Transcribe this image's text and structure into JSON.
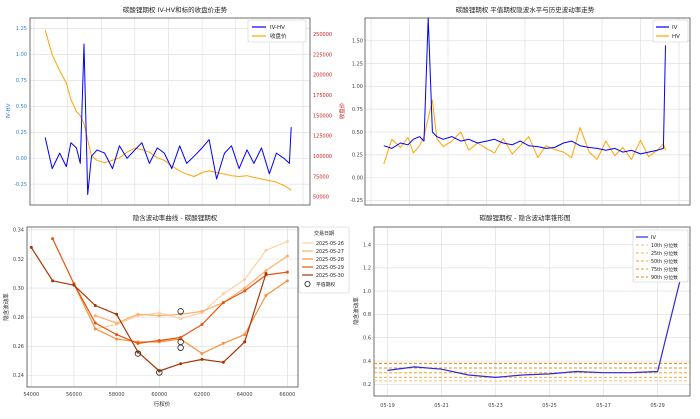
{
  "chart_data": [
    {
      "type": "line",
      "title": "碳酸锂期权 IV-HV和标的收盘价走势",
      "ylabel": "IV-HV",
      "y2label": "收盘价",
      "x_ticks": [
        "2023-07",
        "2023-10",
        "2024-01",
        "2024-04",
        "2024-07",
        "2024-10",
        "2025-01",
        "2025-04",
        "2025-07"
      ],
      "ylim": [
        -0.45,
        1.35
      ],
      "y_ticks": [
        "-0.50",
        "-0.25",
        "0.00",
        "0.25",
        "0.50",
        "0.75",
        "1.00",
        "1.25"
      ],
      "y2lim": [
        40000,
        270000
      ],
      "y2_ticks": [
        "50000",
        "75000",
        "100000",
        "125000",
        "150000",
        "175000",
        "200000",
        "225000",
        "250000"
      ],
      "grid": true,
      "legend_position": "upper-right",
      "series": [
        {
          "name": "IV-HV",
          "color": "#0000ff",
          "axis": "left",
          "x": [
            "2023-08-01",
            "2023-08-20",
            "2023-09-10",
            "2023-09-28",
            "2023-10-10",
            "2023-10-25",
            "2023-11-05",
            "2023-11-15",
            "2023-11-25",
            "2023-12-05",
            "2023-12-20",
            "2024-01-10",
            "2024-02-01",
            "2024-02-20",
            "2024-03-10",
            "2024-04-01",
            "2024-04-20",
            "2024-05-10",
            "2024-06-01",
            "2024-06-20",
            "2024-07-10",
            "2024-08-01",
            "2024-08-20",
            "2024-09-10",
            "2024-10-01",
            "2024-10-20",
            "2024-11-10",
            "2024-12-01",
            "2024-12-20",
            "2025-01-10",
            "2025-02-01",
            "2025-02-20",
            "2025-03-10",
            "2025-04-01",
            "2025-04-20",
            "2025-05-10",
            "2025-05-25",
            "2025-05-30"
          ],
          "y": [
            0.2,
            -0.1,
            0.05,
            -0.08,
            0.15,
            0.1,
            -0.05,
            1.1,
            -0.35,
            0.02,
            0.08,
            0.05,
            -0.1,
            0.12,
            0.0,
            0.08,
            0.15,
            -0.05,
            0.1,
            0.05,
            -0.1,
            0.12,
            -0.05,
            0.02,
            0.1,
            0.18,
            -0.2,
            0.05,
            0.12,
            -0.1,
            0.08,
            -0.05,
            0.1,
            -0.15,
            0.05,
            0.0,
            -0.05,
            0.3
          ]
        },
        {
          "name": "收盘价",
          "color": "#ffa500",
          "axis": "right",
          "x": [
            "2023-08-01",
            "2023-08-20",
            "2023-09-10",
            "2023-09-28",
            "2023-10-10",
            "2023-10-25",
            "2023-11-05",
            "2023-11-15",
            "2023-11-25",
            "2023-12-05",
            "2023-12-20",
            "2024-01-10",
            "2024-02-01",
            "2024-02-20",
            "2024-03-10",
            "2024-04-01",
            "2024-04-20",
            "2024-05-10",
            "2024-06-01",
            "2024-06-20",
            "2024-07-10",
            "2024-08-01",
            "2024-08-20",
            "2024-09-10",
            "2024-10-01",
            "2024-10-20",
            "2024-11-10",
            "2024-12-01",
            "2024-12-20",
            "2025-01-10",
            "2025-02-01",
            "2025-02-20",
            "2025-03-10",
            "2025-04-01",
            "2025-04-20",
            "2025-05-10",
            "2025-05-25",
            "2025-05-30"
          ],
          "y": [
            255000,
            225000,
            205000,
            190000,
            170000,
            155000,
            150000,
            140000,
            120000,
            100000,
            95000,
            92000,
            95000,
            98000,
            105000,
            110000,
            108000,
            105000,
            98000,
            95000,
            88000,
            82000,
            78000,
            75000,
            80000,
            82000,
            80000,
            78000,
            76000,
            75000,
            76000,
            74000,
            72000,
            70000,
            68000,
            64000,
            60000,
            58000
          ]
        }
      ]
    },
    {
      "type": "line",
      "title": "碳酸锂期权 平值期权隐波水平与历史波动率走势",
      "x_ticks": [
        "2023-07",
        "2023-10",
        "2024-01",
        "2024-04",
        "2024-07",
        "2024-10",
        "2025-01",
        "2025-04",
        "2025-07"
      ],
      "ylim": [
        -0.3,
        1.75
      ],
      "y_ticks": [
        "-0.25",
        "0.00",
        "0.25",
        "0.50",
        "0.75",
        "1.00",
        "1.25",
        "1.50"
      ],
      "grid": true,
      "legend_position": "upper-right",
      "series": [
        {
          "name": "IV",
          "color": "#0000ff",
          "x": [
            "2023-08-01",
            "2023-08-20",
            "2023-09-10",
            "2023-09-28",
            "2023-10-10",
            "2023-10-25",
            "2023-11-05",
            "2023-11-15",
            "2023-11-25",
            "2023-12-05",
            "2023-12-20",
            "2024-01-10",
            "2024-02-01",
            "2024-02-20",
            "2024-03-10",
            "2024-04-01",
            "2024-04-20",
            "2024-05-10",
            "2024-06-01",
            "2024-06-20",
            "2024-07-10",
            "2024-08-01",
            "2024-08-20",
            "2024-09-10",
            "2024-10-01",
            "2024-10-20",
            "2024-11-10",
            "2024-12-01",
            "2024-12-20",
            "2025-01-10",
            "2025-02-01",
            "2025-02-20",
            "2025-03-10",
            "2025-04-01",
            "2025-04-20",
            "2025-05-10",
            "2025-05-25",
            "2025-05-30"
          ],
          "y": [
            0.35,
            0.32,
            0.38,
            0.36,
            0.42,
            0.45,
            0.4,
            1.75,
            0.5,
            0.45,
            0.42,
            0.45,
            0.4,
            0.42,
            0.38,
            0.4,
            0.42,
            0.38,
            0.36,
            0.4,
            0.35,
            0.34,
            0.32,
            0.33,
            0.38,
            0.4,
            0.35,
            0.33,
            0.32,
            0.3,
            0.32,
            0.28,
            0.3,
            0.26,
            0.28,
            0.3,
            0.32,
            1.45
          ]
        },
        {
          "name": "HV",
          "color": "#ffa500",
          "x": [
            "2023-08-01",
            "2023-08-20",
            "2023-09-10",
            "2023-09-28",
            "2023-10-10",
            "2023-10-25",
            "2023-11-05",
            "2023-11-15",
            "2023-11-25",
            "2023-12-05",
            "2023-12-20",
            "2024-01-10",
            "2024-02-01",
            "2024-02-20",
            "2024-03-10",
            "2024-04-01",
            "2024-04-20",
            "2024-05-10",
            "2024-06-01",
            "2024-06-20",
            "2024-07-10",
            "2024-08-01",
            "2024-08-20",
            "2024-09-10",
            "2024-10-01",
            "2024-10-20",
            "2024-11-10",
            "2024-12-01",
            "2024-12-20",
            "2025-01-10",
            "2025-02-01",
            "2025-02-20",
            "2025-03-10",
            "2025-04-01",
            "2025-04-20",
            "2025-05-10",
            "2025-05-25",
            "2025-05-30"
          ],
          "y": [
            0.15,
            0.42,
            0.33,
            0.44,
            0.27,
            0.35,
            0.45,
            0.65,
            0.85,
            0.43,
            0.34,
            0.4,
            0.5,
            0.3,
            0.38,
            0.32,
            0.27,
            0.43,
            0.26,
            0.35,
            0.45,
            0.22,
            0.35,
            0.31,
            0.28,
            0.22,
            0.55,
            0.28,
            0.2,
            0.4,
            0.24,
            0.33,
            0.2,
            0.41,
            0.23,
            0.3,
            0.37,
            0.3
          ]
        }
      ]
    },
    {
      "type": "line",
      "title": "隐含波动率曲线 - 碳酸锂期权",
      "xlabel": "行权价",
      "ylabel": "隐含波动率",
      "xlim": [
        53800,
        66500
      ],
      "x_ticks": [
        "54000",
        "56000",
        "58000",
        "60000",
        "62000",
        "64000",
        "66000"
      ],
      "ylim": [
        0.232,
        0.342
      ],
      "y_ticks": [
        "0.24",
        "0.26",
        "0.28",
        "0.30",
        "0.32",
        "0.34"
      ],
      "grid": true,
      "legend_title": "交易日期",
      "legend_position": "upper-right",
      "series": [
        {
          "name": "2025-05-26",
          "color": "#fdd0a2",
          "x": [
            57000,
            58000,
            59000,
            60000,
            61000,
            62000,
            63000,
            64000,
            65000,
            66000
          ],
          "y": [
            0.272,
            0.275,
            0.281,
            0.283,
            0.279,
            0.283,
            0.296,
            0.306,
            0.326,
            0.332
          ]
        },
        {
          "name": "2025-05-27",
          "color": "#fdae6b",
          "x": [
            57000,
            58000,
            59000,
            60000,
            61000,
            62000,
            63000,
            64000,
            65000,
            66000
          ],
          "y": [
            0.281,
            0.276,
            0.282,
            0.281,
            0.282,
            0.284,
            0.29,
            0.3,
            0.312,
            0.322
          ]
        },
        {
          "name": "2025-05-28",
          "color": "#fd8d3c",
          "x": [
            56000,
            57000,
            58000,
            59000,
            60000,
            61000,
            62000,
            63000,
            64000,
            65000,
            66000
          ],
          "y": [
            0.303,
            0.272,
            0.265,
            0.263,
            0.263,
            0.265,
            0.255,
            0.262,
            0.268,
            0.295,
            0.305
          ]
        },
        {
          "name": "2025-05-29",
          "color": "#e6550d",
          "x": [
            55000,
            56000,
            57000,
            58000,
            59000,
            60000,
            61000,
            62000,
            63000,
            64000,
            65000,
            66000
          ],
          "y": [
            0.334,
            0.303,
            0.276,
            0.268,
            0.262,
            0.264,
            0.266,
            0.275,
            0.29,
            0.298,
            0.309,
            0.311
          ]
        },
        {
          "name": "2025-05-30",
          "color": "#a63603",
          "x": [
            54000,
            55000,
            56000,
            57000,
            58000,
            59000,
            60000,
            61000,
            62000,
            63000,
            64000,
            65000
          ],
          "y": [
            0.328,
            0.305,
            0.302,
            0.288,
            0.282,
            0.256,
            0.243,
            0.248,
            0.251,
            0.249,
            0.263,
            0.31
          ]
        }
      ],
      "atm_points": [
        {
          "x": 61000,
          "y": 0.284
        },
        {
          "x": 61000,
          "y": 0.263
        },
        {
          "x": 61000,
          "y": 0.259
        },
        {
          "x": 59000,
          "y": 0.255
        },
        {
          "x": 60000,
          "y": 0.242
        }
      ],
      "atm_label": "平值期权"
    },
    {
      "type": "line",
      "title": "碳酸锂期权 - 隐含波动率锥形图",
      "ylabel": "隐含波动率",
      "x_ticks": [
        "05-19",
        "05-21",
        "05-23",
        "05-25",
        "05-27",
        "05-29"
      ],
      "ylim": [
        0.1,
        1.55
      ],
      "y_ticks": [
        "0.2",
        "0.4",
        "0.6",
        "0.8",
        "1.0",
        "1.2",
        "1.4"
      ],
      "grid": true,
      "legend_position": "upper-right",
      "series": [
        {
          "name": "IV",
          "color": "#2a2adf",
          "x": [
            19,
            20,
            21,
            22,
            23,
            24,
            25,
            26,
            27,
            28,
            29,
            30
          ],
          "y": [
            0.32,
            0.35,
            0.33,
            0.28,
            0.26,
            0.28,
            0.29,
            0.31,
            0.3,
            0.3,
            0.31,
            1.25
          ]
        }
      ],
      "percentiles": [
        {
          "name": "10th 分位数",
          "value": 0.23,
          "color": "#f6c17a"
        },
        {
          "name": "25th 分位数",
          "value": 0.26,
          "color": "#f4b04a"
        },
        {
          "name": "50th 分位数",
          "value": 0.3,
          "color": "#f3a324"
        },
        {
          "name": "75th 分位数",
          "value": 0.34,
          "color": "#e8961a"
        },
        {
          "name": "90th 分位数",
          "value": 0.38,
          "color": "#d98a10"
        }
      ]
    }
  ]
}
